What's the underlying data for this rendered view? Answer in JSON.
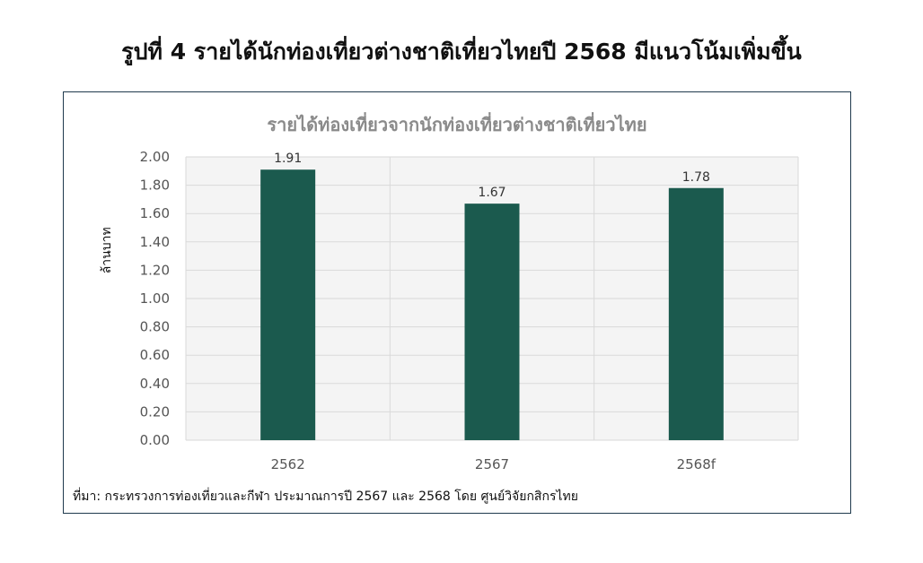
{
  "figure_title": "รูปที่ 4 รายได้นักท่องเที่ยวต่างชาติเที่ยวไทยปี 2568 มีแนวโน้มเพิ่มขึ้น",
  "source_note": "ที่มา: กระทรวงการท่องเที่ยวและกีฬา ประมาณการปี 2567 และ 2568 โดย ศูนย์วิจัยกสิกรไทย",
  "colors": {
    "bar": "#1b5a4e",
    "plot_bg": "#f4f4f4",
    "grid": "#d9d9d9",
    "frame": "#1f3a4d"
  },
  "chart_data": {
    "type": "bar",
    "title": "รายได้ท่องเที่ยวจากนักท่องเที่ยวต่างชาติเที่ยวไทย",
    "categories": [
      "2562",
      "2567",
      "2568f"
    ],
    "values": [
      1.91,
      1.67,
      1.78
    ],
    "data_labels": [
      "1.91",
      "1.67",
      "1.78"
    ],
    "ylabel": "ล้านบาท",
    "xlabel": "",
    "ylim": [
      0,
      2.0
    ],
    "yticks": [
      "0.00",
      "0.20",
      "0.40",
      "0.60",
      "0.80",
      "1.00",
      "1.20",
      "1.40",
      "1.60",
      "1.80",
      "2.00"
    ],
    "grid": true,
    "legend": "none"
  }
}
